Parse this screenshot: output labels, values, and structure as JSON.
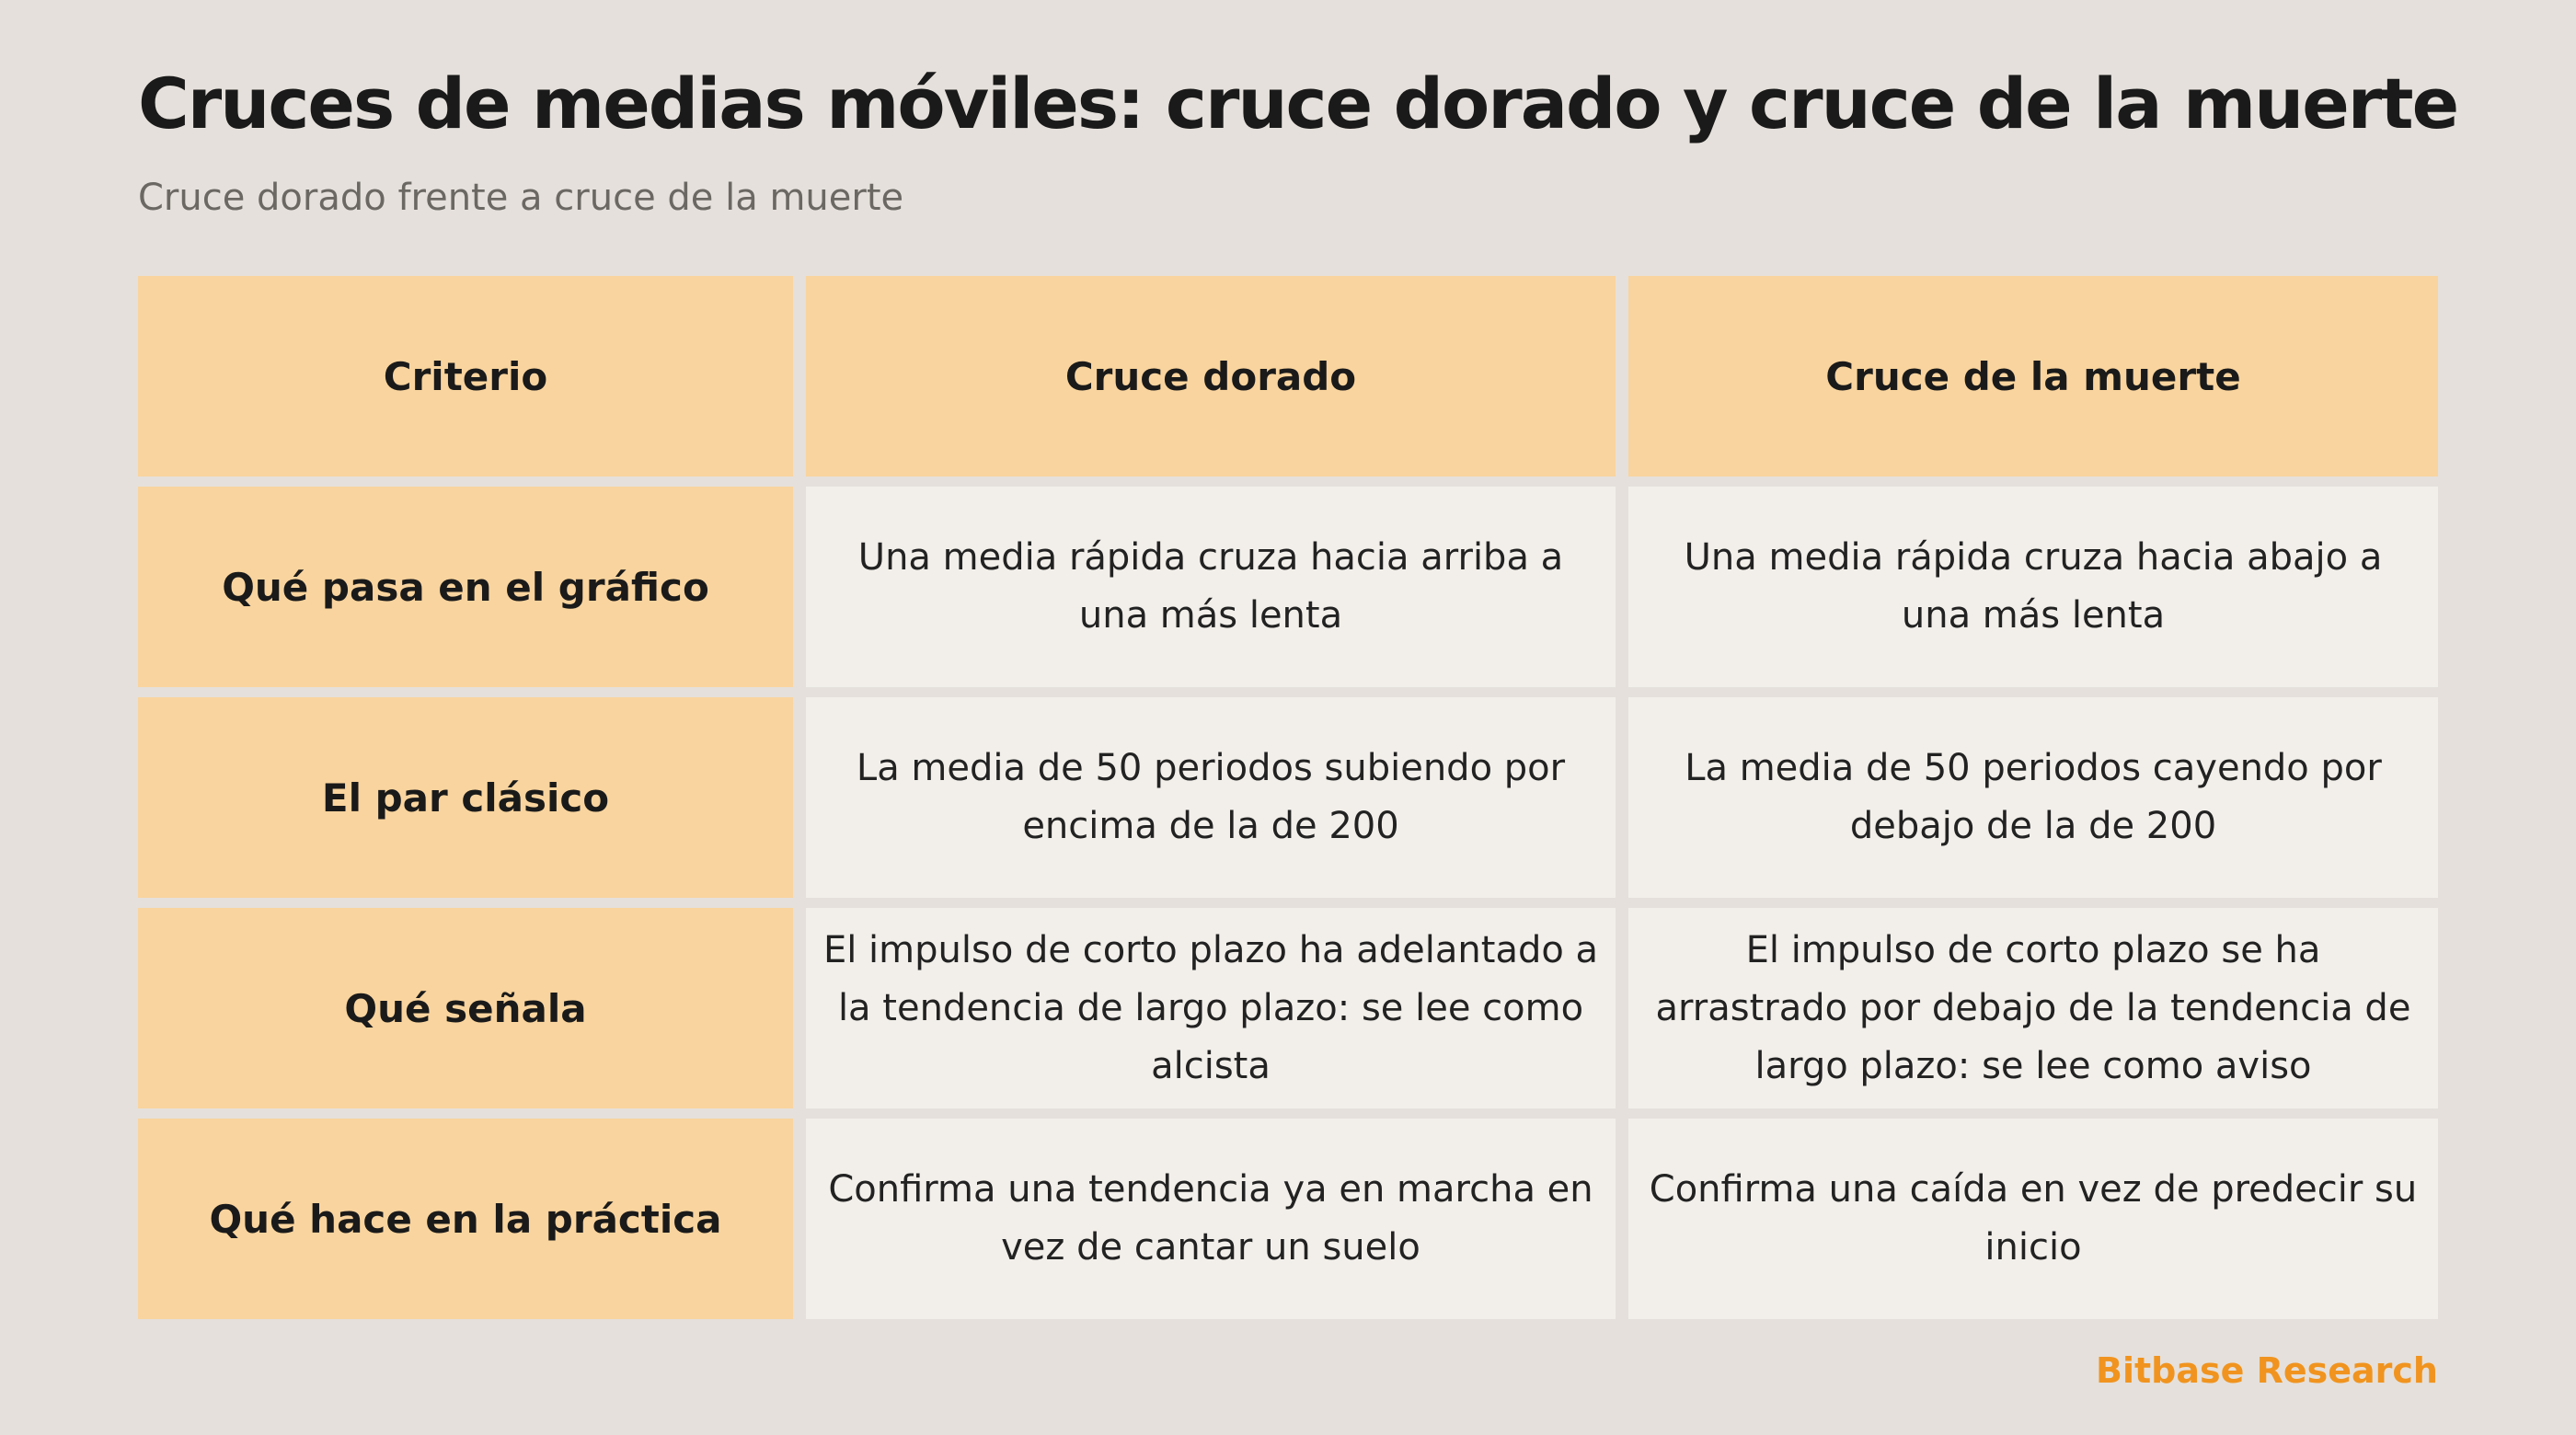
{
  "title": "Cruces de medias móviles: cruce dorado y cruce de la muerte",
  "subtitle": "Cruce dorado frente a cruce de la muerte",
  "table": {
    "headers": [
      "Criterio",
      "Cruce dorado",
      "Cruce de la muerte"
    ],
    "rows": [
      {
        "criterion": "Qué pasa en el gráfico",
        "golden": "Una media rápida cruza hacia arriba a una más lenta",
        "death": "Una media rápida cruza hacia abajo a una más lenta"
      },
      {
        "criterion": "El par clásico",
        "golden": "La media de 50 periodos subiendo por encima de la de 200",
        "death": "La media de 50 periodos cayendo por debajo de la de 200"
      },
      {
        "criterion": "Qué señala",
        "golden": "El impulso de corto plazo ha adelantado a la tendencia de largo plazo: se lee como alcista",
        "death": "El impulso de corto plazo se ha arrastrado por debajo de la tendencia de largo plazo: se lee como aviso"
      },
      {
        "criterion": "Qué hace en la práctica",
        "golden": "Confirma una tendencia ya en marcha en vez de cantar un suelo",
        "death": "Confirma una caída en vez de predecir su inicio"
      }
    ]
  },
  "brand": "Bitbase Research",
  "colors": {
    "background": "#e5e0db",
    "header_fill": "#f9d49e",
    "body_fill": "#f2efea",
    "brand": "#f0941f"
  }
}
